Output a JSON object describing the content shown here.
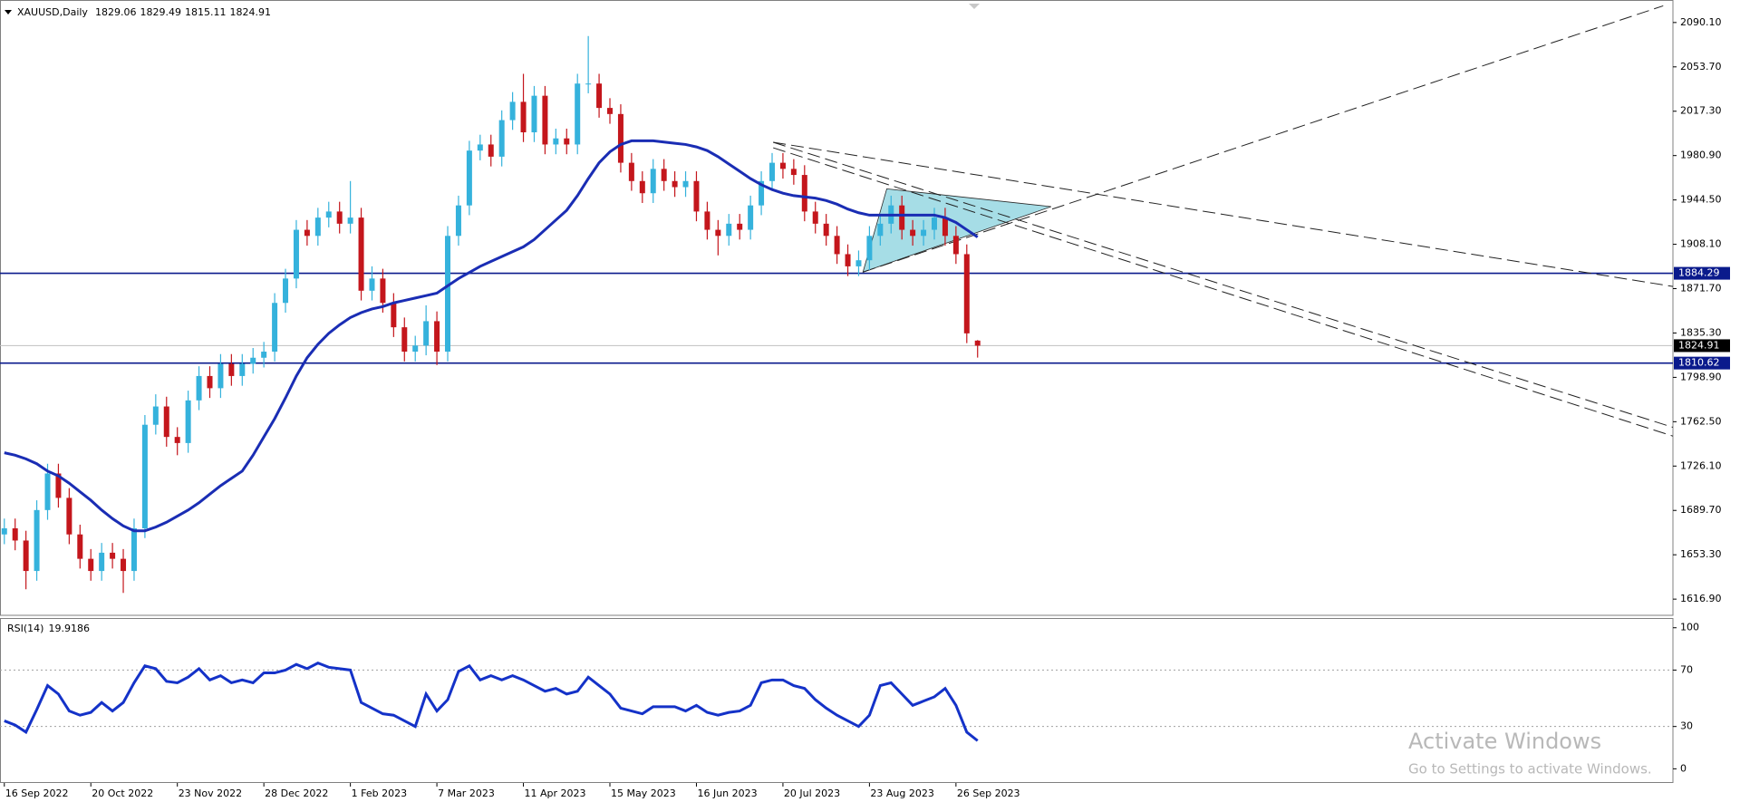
{
  "chart_data": [
    {
      "type": "candlestick",
      "title": "XAUUSD,Daily",
      "open": [
        1670,
        1675,
        1665,
        1640,
        1690,
        1720,
        1700,
        1670,
        1650,
        1640,
        1655,
        1650,
        1640,
        1675,
        1760,
        1775,
        1750,
        1745,
        1780,
        1800,
        1790,
        1810,
        1800,
        1810,
        1815,
        1820,
        1860,
        1880,
        1920,
        1915,
        1930,
        1935,
        1925,
        1930,
        1870,
        1880,
        1860,
        1840,
        1820,
        1825,
        1845,
        1820,
        1915,
        1940,
        1985,
        1990,
        1980,
        2010,
        2025,
        2000,
        2030,
        1990,
        1995,
        1990,
        2040,
        2040,
        2020,
        2015,
        1975,
        1960,
        1950,
        1970,
        1960,
        1955,
        1960,
        1935,
        1920,
        1915,
        1925,
        1920,
        1940,
        1960,
        1975,
        1970,
        1965,
        1935,
        1925,
        1915,
        1900,
        1890,
        1895,
        1915,
        1925,
        1940,
        1920,
        1915,
        1920,
        1930,
        1915,
        1900,
        1829.06
      ],
      "high": [
        1683,
        1683,
        1673,
        1698,
        1728,
        1728,
        1708,
        1678,
        1658,
        1663,
        1663,
        1658,
        1683,
        1768,
        1785,
        1783,
        1758,
        1788,
        1808,
        1808,
        1818,
        1818,
        1818,
        1823,
        1828,
        1868,
        1888,
        1928,
        1928,
        1938,
        1943,
        1943,
        1960,
        1938,
        1890,
        1888,
        1868,
        1848,
        1833,
        1858,
        1853,
        1923,
        1948,
        1993,
        1998,
        1998,
        2018,
        2033,
        2048,
        2038,
        2038,
        2003,
        2003,
        2048,
        2079,
        2048,
        2028,
        2023,
        1983,
        1968,
        1978,
        1978,
        1968,
        1968,
        1968,
        1943,
        1928,
        1933,
        1933,
        1948,
        1968,
        1983,
        1983,
        1978,
        1973,
        1943,
        1933,
        1923,
        1908,
        1903,
        1923,
        1933,
        1948,
        1948,
        1928,
        1928,
        1938,
        1938,
        1923,
        1908,
        1829.49
      ],
      "low": [
        1662,
        1657,
        1625,
        1632,
        1682,
        1692,
        1662,
        1642,
        1632,
        1632,
        1642,
        1622,
        1632,
        1667,
        1752,
        1742,
        1735,
        1737,
        1772,
        1782,
        1782,
        1792,
        1792,
        1802,
        1807,
        1812,
        1852,
        1872,
        1907,
        1907,
        1922,
        1917,
        1917,
        1862,
        1862,
        1852,
        1832,
        1812,
        1812,
        1817,
        1809,
        1812,
        1907,
        1932,
        1977,
        1972,
        1972,
        2002,
        1992,
        1992,
        1982,
        1982,
        1982,
        1982,
        2032,
        2012,
        2007,
        1967,
        1952,
        1942,
        1942,
        1952,
        1947,
        1947,
        1927,
        1912,
        1899,
        1907,
        1912,
        1912,
        1932,
        1952,
        1962,
        1957,
        1927,
        1917,
        1907,
        1892,
        1882,
        1882,
        1887,
        1907,
        1917,
        1912,
        1907,
        1907,
        1912,
        1907,
        1892,
        1827,
        1815.11
      ],
      "close": [
        1675,
        1665,
        1640,
        1690,
        1720,
        1700,
        1670,
        1650,
        1640,
        1655,
        1650,
        1640,
        1675,
        1760,
        1775,
        1750,
        1745,
        1780,
        1800,
        1790,
        1810,
        1800,
        1810,
        1815,
        1820,
        1860,
        1880,
        1920,
        1915,
        1930,
        1935,
        1925,
        1930,
        1870,
        1880,
        1860,
        1840,
        1820,
        1825,
        1845,
        1820,
        1915,
        1940,
        1985,
        1990,
        1980,
        2010,
        2025,
        2000,
        2030,
        1990,
        1995,
        1990,
        2040,
        2040,
        2020,
        2015,
        1975,
        1960,
        1950,
        1970,
        1960,
        1955,
        1960,
        1935,
        1920,
        1915,
        1925,
        1920,
        1940,
        1960,
        1975,
        1970,
        1965,
        1935,
        1925,
        1915,
        1900,
        1890,
        1895,
        1915,
        1925,
        1940,
        1920,
        1915,
        1920,
        1930,
        1915,
        1900,
        1835,
        1824.91
      ],
      "up_color": "#35b2dc",
      "down_color": "#c4161c",
      "series": [
        {
          "color": "#1a2db4",
          "values": [
            1737,
            1735,
            1732,
            1728,
            1722,
            1718,
            1712,
            1705,
            1698,
            1690,
            1683,
            1677,
            1673,
            1673,
            1676,
            1680,
            1685,
            1690,
            1696,
            1703,
            1710,
            1716,
            1722,
            1735,
            1750,
            1765,
            1782,
            1800,
            1815,
            1826,
            1835,
            1842,
            1848,
            1852,
            1855,
            1857,
            1860,
            1862,
            1864,
            1866,
            1868,
            1874,
            1880,
            1885,
            1890,
            1894,
            1898,
            1902,
            1906,
            1912,
            1920,
            1928,
            1936,
            1948,
            1962,
            1975,
            1984,
            1990,
            1993,
            1993,
            1993,
            1992,
            1991,
            1990,
            1988,
            1985,
            1980,
            1974,
            1968,
            1962,
            1957,
            1953,
            1950,
            1948,
            1947,
            1946,
            1944,
            1941,
            1937,
            1934,
            1932,
            1932,
            1932,
            1932,
            1932,
            1932,
            1932,
            1930,
            1926,
            1920,
            1914
          ]
        }
      ],
      "hlines": [
        {
          "value": 1884.29,
          "color": "#0a1a8c"
        },
        {
          "value": 1810.62,
          "color": "#0a1a8c"
        }
      ],
      "trendlines": [
        {
          "x": [
            79.4,
            153.4
          ],
          "y": [
            1885.3,
            2103.8
          ]
        },
        {
          "x": [
            71.1,
            154.3
          ],
          "y": [
            1991.8,
            1873.5
          ]
        },
        {
          "x": [
            71.1,
            154.3
          ],
          "y": [
            1991.8,
            1757.9
          ]
        },
        {
          "x": [
            71.1,
            154.3
          ],
          "y": [
            1987.3,
            1750.7
          ]
        }
      ],
      "triangle": {
        "x": [
          81.6,
          96.8,
          79.4
        ],
        "y": [
          1953.6,
          1939.0,
          1885.3
        ],
        "color": "#a6dde6"
      },
      "xlim": [
        -0.4,
        154.3
      ],
      "xticks": [
        {
          "value": 0,
          "label": "16 Sep 2022"
        },
        {
          "value": 8,
          "label": "20 Oct 2022"
        },
        {
          "value": 16,
          "label": "23 Nov 2022"
        },
        {
          "value": 24,
          "label": "28 Dec 2022"
        },
        {
          "value": 32,
          "label": "1 Feb 2023"
        },
        {
          "value": 40,
          "label": "7 Mar 2023"
        },
        {
          "value": 48,
          "label": "11 Apr 2023"
        },
        {
          "value": 56,
          "label": "15 May 2023"
        },
        {
          "value": 64,
          "label": "16 Jun 2023"
        },
        {
          "value": 72,
          "label": "20 Jul 2023"
        },
        {
          "value": 80,
          "label": "23 Aug 2023"
        },
        {
          "value": 88,
          "label": "26 Sep 2023"
        }
      ],
      "ylim": [
        1605.1,
        2105.6
      ],
      "yticks": [
        {
          "value": 2090.1,
          "label": "2090.10"
        },
        {
          "value": 2053.7,
          "label": "2053.70"
        },
        {
          "value": 2017.3,
          "label": "2017.30"
        },
        {
          "value": 1980.9,
          "label": "1980.90"
        },
        {
          "value": 1944.5,
          "label": "1944.50"
        },
        {
          "value": 1908.1,
          "label": "1908.10"
        },
        {
          "value": 1871.7,
          "label": "1871.70"
        },
        {
          "value": 1835.3,
          "label": "1835.30"
        },
        {
          "value": 1798.9,
          "label": "1798.90"
        },
        {
          "value": 1762.5,
          "label": "1762.50"
        },
        {
          "value": 1726.1,
          "label": "1726.10"
        },
        {
          "value": 1689.7,
          "label": "1689.70"
        },
        {
          "value": 1653.3,
          "label": "1653.30"
        },
        {
          "value": 1616.9,
          "label": "1616.90"
        }
      ]
    },
    {
      "type": "line",
      "title": "RSI(14)",
      "color": "#1432c8",
      "values": [
        34,
        31,
        26,
        42,
        59,
        53,
        41,
        38,
        40,
        47,
        41,
        47,
        61,
        73,
        71,
        62,
        61,
        65,
        71,
        63,
        66,
        61,
        63,
        61,
        68,
        68,
        70,
        74,
        71,
        75,
        72,
        71,
        70,
        47,
        43,
        39,
        38,
        34,
        30,
        53,
        41,
        49,
        69,
        73,
        63,
        66,
        63,
        66,
        63,
        59,
        55,
        57,
        53,
        55,
        65,
        59,
        53,
        43,
        41,
        39,
        44,
        44,
        44,
        41,
        45,
        40,
        38,
        40,
        41,
        45,
        61,
        63,
        63,
        59,
        57,
        49,
        43,
        38,
        34,
        30,
        38,
        59,
        61,
        53,
        45,
        48,
        51,
        57,
        45,
        26,
        19.9186
      ],
      "ylim": [
        -9.4,
        106.25
      ],
      "yticks": [
        100,
        70,
        30,
        0
      ],
      "levels": [
        70,
        30
      ]
    }
  ],
  "watermark": {
    "title": "Activate Windows",
    "text": "Go to Settings to activate Windows."
  }
}
